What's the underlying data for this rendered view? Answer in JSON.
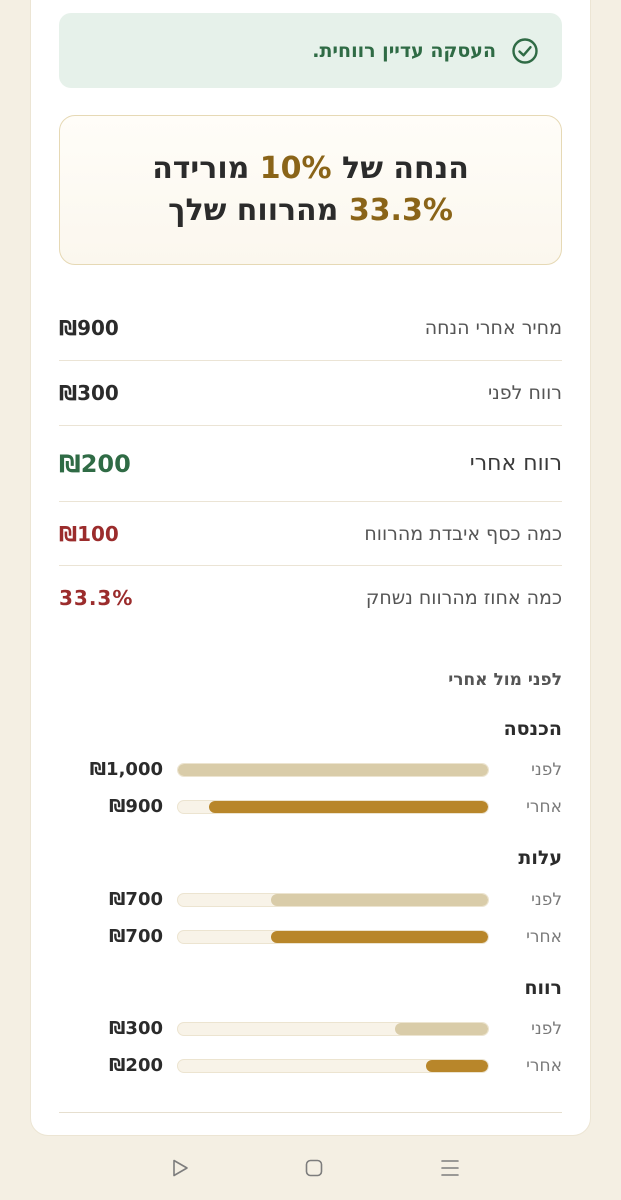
{
  "banner": {
    "message": "העסקה עדיין רווחית.",
    "icon": "check-circle-icon"
  },
  "headline": {
    "part1": "הנחה של ",
    "discount": "10%",
    "part2": " מורידה ",
    "percent": "33.3%",
    "part3": " מהרווח שלך"
  },
  "summary": [
    {
      "label": "מחיר אחרי הנחה",
      "value": "₪900"
    },
    {
      "label": "רווח לפני",
      "value": "₪300"
    },
    {
      "label": "רווח אחרי",
      "value": "₪200"
    },
    {
      "label": "כמה כסף איבדת מהרווח",
      "value": "₪100"
    },
    {
      "label": "כמה אחוז מהרווח נשחק",
      "value": "33.3%"
    }
  ],
  "comparison": {
    "title": "לפני מול אחרי",
    "before_label": "לפני",
    "after_label": "אחרי",
    "groups": [
      {
        "title": "הכנסה",
        "before": {
          "value": "₪1,000",
          "fraction": 1.0
        },
        "after": {
          "value": "₪900",
          "fraction": 0.9
        }
      },
      {
        "title": "עלות",
        "before": {
          "value": "₪700",
          "fraction": 0.7
        },
        "after": {
          "value": "₪700",
          "fraction": 0.7
        }
      },
      {
        "title": "רווח",
        "before": {
          "value": "₪300",
          "fraction": 0.3
        },
        "after": {
          "value": "₪200",
          "fraction": 0.2
        }
      }
    ]
  },
  "colors": {
    "accent": "#b8862a",
    "before_bar": "#d9cca9",
    "positive": "#2f6b45",
    "negative": "#9b2c2c"
  },
  "navbar": {
    "icons": [
      "back-icon",
      "home-icon",
      "recents-icon"
    ]
  }
}
